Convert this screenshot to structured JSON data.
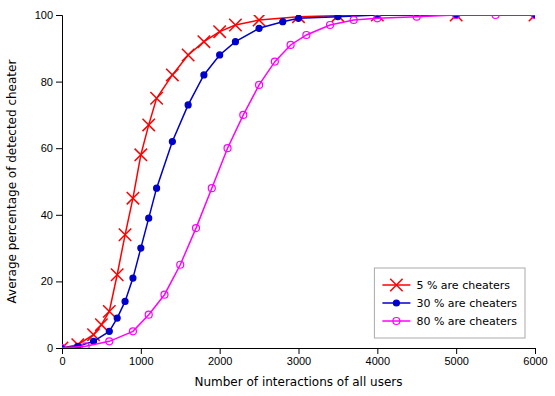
{
  "chart_data": {
    "type": "line",
    "xlabel": "Number of interactions of all users",
    "ylabel": "Average percentage of detected cheater",
    "xlim": [
      0,
      6000
    ],
    "ylim": [
      0,
      100
    ],
    "xticks": [
      0,
      1000,
      2000,
      3000,
      4000,
      5000,
      6000
    ],
    "yticks": [
      0,
      20,
      40,
      60,
      80,
      100
    ],
    "grid": false,
    "legend": "lower right",
    "series": [
      {
        "name": "5 % are cheaters",
        "color": "#ff0000",
        "marker": "x",
        "x": [
          0,
          200,
          400,
          500,
          600,
          700,
          800,
          900,
          1000,
          1100,
          1200,
          1400,
          1600,
          1800,
          2000,
          2200,
          2500,
          3000,
          3500,
          4000,
          5000,
          6000
        ],
        "values": [
          0,
          1,
          4,
          7,
          11,
          22,
          34,
          45,
          58,
          67,
          75,
          82,
          88,
          92,
          95,
          97,
          98.5,
          99.5,
          99.8,
          100,
          100,
          100
        ]
      },
      {
        "name": "30 % are cheaters",
        "color": "#0000cd",
        "marker": "circle",
        "x": [
          0,
          200,
          400,
          600,
          700,
          800,
          900,
          1000,
          1100,
          1200,
          1400,
          1600,
          1800,
          2000,
          2200,
          2500,
          2800,
          3000,
          3500,
          4000,
          5000,
          6000
        ],
        "values": [
          0,
          0.5,
          2,
          5,
          9,
          14,
          21,
          30,
          39,
          48,
          62,
          73,
          82,
          88,
          92,
          96,
          98,
          99,
          99.5,
          100,
          100,
          100
        ]
      },
      {
        "name": "80 % are cheaters",
        "color": "#ff00ff",
        "marker": "circle-open",
        "x": [
          0,
          300,
          600,
          900,
          1100,
          1300,
          1500,
          1700,
          1900,
          2100,
          2300,
          2500,
          2700,
          2900,
          3100,
          3400,
          3700,
          4000,
          4500,
          5000,
          5500,
          6000
        ],
        "values": [
          0,
          0.5,
          2,
          5,
          10,
          16,
          25,
          36,
          48,
          60,
          70,
          79,
          86,
          91,
          94,
          97,
          98.5,
          99,
          99.5,
          100,
          100,
          100
        ]
      }
    ]
  }
}
